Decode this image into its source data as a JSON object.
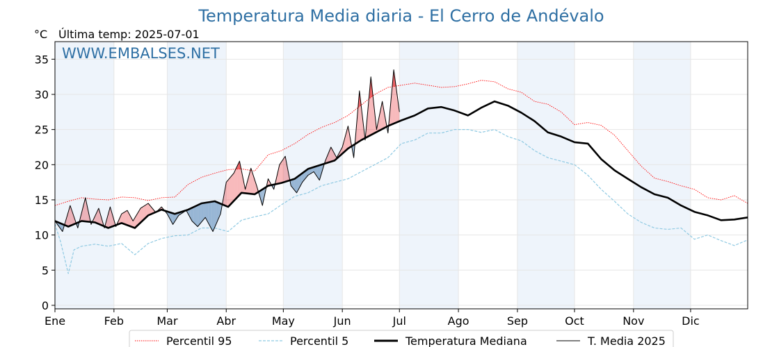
{
  "title": "Temperatura Media diaria - El Cerro de Andévalo",
  "unit_label": "°C",
  "last_temp_label": "Última temp: 2025-07-01",
  "watermark": "WWW.EMBALSES.NET",
  "colors": {
    "p95": "#ff0000",
    "p5": "#8ec9e2",
    "median": "#000000",
    "current": "#000000",
    "above": "#e8262a",
    "below": "#4f82b4",
    "band": "#eef4fb",
    "grid": "#e6e6e6",
    "title": "#2e6fa3"
  },
  "chart_data": {
    "type": "line",
    "title": "Temperatura Media diaria - El Cerro de Andévalo",
    "ylabel": "°C",
    "ylim": [
      -0.5,
      37.5
    ],
    "yticks": [
      0,
      5,
      10,
      15,
      20,
      25,
      30,
      35
    ],
    "x_unit": "day of year",
    "xlim": [
      1,
      365
    ],
    "months": [
      {
        "label": "Ene",
        "start_day": 1
      },
      {
        "label": "Feb",
        "start_day": 32
      },
      {
        "label": "Mar",
        "start_day": 60
      },
      {
        "label": "Abr",
        "start_day": 91
      },
      {
        "label": "May",
        "start_day": 121
      },
      {
        "label": "Jun",
        "start_day": 152
      },
      {
        "label": "Jul",
        "start_day": 182
      },
      {
        "label": "Ago",
        "start_day": 213
      },
      {
        "label": "Sep",
        "start_day": 244
      },
      {
        "label": "Oct",
        "start_day": 274
      },
      {
        "label": "Nov",
        "start_day": 305
      },
      {
        "label": "Dic",
        "start_day": 335
      }
    ],
    "grid": true,
    "legend_position": "bottom",
    "series": [
      {
        "name": "Percentil 95",
        "style": "dotted",
        "x": [
          1,
          8,
          15,
          22,
          29,
          36,
          43,
          50,
          57,
          64,
          71,
          78,
          85,
          92,
          99,
          106,
          113,
          120,
          127,
          134,
          141,
          148,
          155,
          162,
          169,
          176,
          183,
          190,
          197,
          204,
          211,
          218,
          225,
          232,
          239,
          246,
          253,
          260,
          267,
          274,
          281,
          288,
          295,
          302,
          309,
          316,
          323,
          330,
          337,
          344,
          351,
          358,
          365
        ],
        "y": [
          14.2,
          14.8,
          15.3,
          15.1,
          15.0,
          15.4,
          15.3,
          14.9,
          15.3,
          15.4,
          17.2,
          18.2,
          18.8,
          19.3,
          19.4,
          19.1,
          21.4,
          22.0,
          23.0,
          24.3,
          25.3,
          26.0,
          27.0,
          28.5,
          30.0,
          31.0,
          31.3,
          31.6,
          31.3,
          31.0,
          31.1,
          31.5,
          32.0,
          31.8,
          30.8,
          30.3,
          29.0,
          28.6,
          27.5,
          25.7,
          26.0,
          25.6,
          24.2,
          22.0,
          19.8,
          18.1,
          17.6,
          17.0,
          16.5,
          15.3,
          15.0,
          15.6,
          14.5
        ]
      },
      {
        "name": "Percentil 5",
        "style": "dashed",
        "x": [
          1,
          4,
          8,
          11,
          15,
          22,
          29,
          36,
          43,
          50,
          57,
          64,
          71,
          78,
          85,
          92,
          99,
          106,
          113,
          120,
          127,
          134,
          141,
          148,
          155,
          162,
          169,
          176,
          183,
          190,
          197,
          204,
          211,
          218,
          225,
          232,
          239,
          246,
          253,
          260,
          267,
          274,
          281,
          288,
          295,
          302,
          309,
          316,
          323,
          330,
          337,
          344,
          351,
          358,
          365
        ],
        "y": [
          11.6,
          9.0,
          4.5,
          7.9,
          8.4,
          8.7,
          8.4,
          8.8,
          7.2,
          8.8,
          9.5,
          9.9,
          10.0,
          11.0,
          11.0,
          10.5,
          12.1,
          12.6,
          13.0,
          14.3,
          15.5,
          16.0,
          17.0,
          17.5,
          18.0,
          19.0,
          20.0,
          21.0,
          23.0,
          23.5,
          24.5,
          24.5,
          25.0,
          25.0,
          24.6,
          25.0,
          24.0,
          23.4,
          22.0,
          21.0,
          20.5,
          20.0,
          18.5,
          16.5,
          14.8,
          13.0,
          11.8,
          11.0,
          10.8,
          11.0,
          9.4,
          10.0,
          9.2,
          8.5,
          9.3
        ]
      },
      {
        "name": "Temperatura Mediana",
        "style": "thick",
        "x": [
          1,
          8,
          15,
          22,
          29,
          36,
          43,
          50,
          57,
          64,
          71,
          78,
          85,
          92,
          99,
          106,
          113,
          120,
          127,
          134,
          141,
          148,
          155,
          162,
          169,
          176,
          183,
          190,
          197,
          204,
          211,
          218,
          225,
          232,
          239,
          246,
          253,
          260,
          267,
          274,
          281,
          288,
          295,
          302,
          309,
          316,
          323,
          330,
          337,
          344,
          351,
          358,
          365
        ],
        "y": [
          12.0,
          11.2,
          12.0,
          11.8,
          11.0,
          11.7,
          11.0,
          12.8,
          13.6,
          13.0,
          13.6,
          14.5,
          14.8,
          14.0,
          16.0,
          15.8,
          17.0,
          17.4,
          18.0,
          19.4,
          20.0,
          20.6,
          22.3,
          23.5,
          24.5,
          25.5,
          26.3,
          27.0,
          28.0,
          28.2,
          27.7,
          27.0,
          28.1,
          29.0,
          28.4,
          27.4,
          26.2,
          24.6,
          24.0,
          23.2,
          23.0,
          20.8,
          19.2,
          18.0,
          16.8,
          15.8,
          15.3,
          14.2,
          13.3,
          12.8,
          12.1,
          12.2,
          12.5
        ]
      },
      {
        "name": "T. Media 2025",
        "style": "thin",
        "x": [
          1,
          5,
          9,
          13,
          17,
          20,
          24,
          27,
          30,
          33,
          36,
          39,
          42,
          46,
          50,
          54,
          57,
          60,
          63,
          66,
          70,
          73,
          76,
          80,
          84,
          88,
          91,
          95,
          98,
          101,
          104,
          107,
          110,
          113,
          116,
          119,
          122,
          125,
          128,
          131,
          134,
          137,
          140,
          143,
          146,
          149,
          152,
          155,
          158,
          161,
          164,
          167,
          170,
          173,
          176,
          179,
          182
        ],
        "y": [
          12.0,
          10.5,
          14.2,
          11.0,
          15.3,
          11.5,
          13.8,
          11.0,
          14.0,
          11.2,
          13.0,
          13.5,
          12.0,
          13.8,
          14.5,
          13.2,
          14.0,
          13.0,
          11.5,
          12.8,
          13.5,
          12.0,
          11.2,
          12.5,
          10.5,
          13.0,
          17.5,
          18.8,
          20.5,
          16.5,
          19.5,
          17.0,
          14.2,
          18.0,
          16.5,
          20.0,
          21.2,
          17.0,
          16.0,
          17.5,
          18.5,
          19.0,
          17.8,
          20.5,
          22.5,
          21.0,
          22.5,
          25.5,
          21.0,
          30.5,
          23.5,
          32.5,
          25.0,
          29.0,
          24.5,
          33.5,
          27.5
        ]
      }
    ],
    "legend": [
      "Percentil 95",
      "Percentil 5",
      "Temperatura Mediana",
      "T. Media 2025"
    ]
  }
}
